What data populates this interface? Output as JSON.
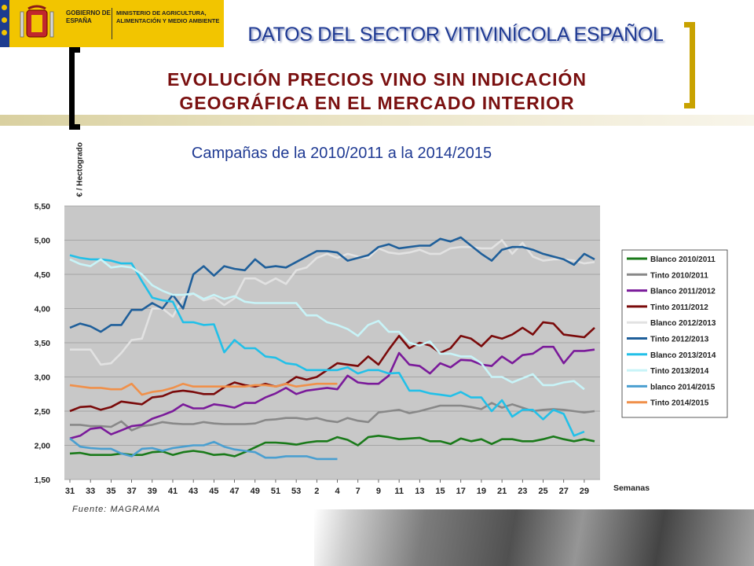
{
  "header": {
    "government": "GOBIERNO DE ESPAÑA",
    "ministry": "MINISTERIO DE AGRICULTURA, ALIMENTACIÓN Y MEDIO AMBIENTE",
    "sector_title": "DATOS DEL SECTOR VITIVINÍCOLA ESPAÑOL",
    "title_line1": "EVOLUCIÓN PRECIOS VINO SIN INDICACIÓN",
    "title_line2": "GEOGRÁFICA EN EL MERCADO INTERIOR",
    "subtitle": "Campañas de la 2010/2011 a la 2014/2015",
    "brand_color": "#f2c500"
  },
  "footer": {
    "source": "Fuente: MAGRAMA"
  },
  "chart_data": {
    "type": "line",
    "ylabel": "€ / Hectogrado",
    "xlabel": "Semanas",
    "ylim": [
      1.5,
      5.5
    ],
    "y_ticks": [
      "1,50",
      "2,00",
      "2,50",
      "3,00",
      "3,50",
      "4,00",
      "4,50",
      "5,00",
      "5,50"
    ],
    "x_ticks": [
      "31",
      "33",
      "35",
      "37",
      "39",
      "41",
      "43",
      "45",
      "47",
      "49",
      "51",
      "53",
      "2",
      "4",
      "7",
      "9",
      "11",
      "13",
      "15",
      "17",
      "19",
      "21",
      "23",
      "25",
      "27",
      "29"
    ],
    "grid": true,
    "legend_position": "right",
    "series": [
      {
        "name": "Blanco 2010/2011",
        "color": "#1a7a1a",
        "values": [
          1.88,
          1.89,
          1.86,
          1.86,
          1.86,
          1.88,
          1.86,
          1.86,
          1.9,
          1.91,
          1.86,
          1.9,
          1.92,
          1.9,
          1.86,
          1.87,
          1.84,
          1.9,
          1.97,
          2.04,
          2.04,
          2.03,
          2.01,
          2.04,
          2.06,
          2.06,
          2.12,
          2.08,
          2.0,
          2.12,
          2.14,
          2.12,
          2.09,
          2.1,
          2.11,
          2.06,
          2.06,
          2.02,
          2.1,
          2.06,
          2.09,
          2.02,
          2.09,
          2.09,
          2.06,
          2.06,
          2.09,
          2.13,
          2.09,
          2.06,
          2.09,
          2.06
        ]
      },
      {
        "name": "Tinto 2010/2011",
        "color": "#888888",
        "values": [
          2.3,
          2.3,
          2.28,
          2.28,
          2.27,
          2.35,
          2.22,
          2.28,
          2.3,
          2.34,
          2.32,
          2.31,
          2.31,
          2.34,
          2.32,
          2.31,
          2.31,
          2.31,
          2.32,
          2.37,
          2.38,
          2.4,
          2.4,
          2.38,
          2.4,
          2.36,
          2.34,
          2.4,
          2.36,
          2.34,
          2.48,
          2.5,
          2.52,
          2.47,
          2.5,
          2.54,
          2.58,
          2.58,
          2.58,
          2.56,
          2.53,
          2.62,
          2.55,
          2.6,
          2.55,
          2.5,
          2.52,
          2.53,
          2.52,
          2.5,
          2.48,
          2.5
        ]
      },
      {
        "name": "Blanco 2011/2012",
        "color": "#7a1a9a",
        "values": [
          2.1,
          2.14,
          2.24,
          2.26,
          2.16,
          2.22,
          2.28,
          2.3,
          2.39,
          2.44,
          2.5,
          2.6,
          2.54,
          2.54,
          2.6,
          2.58,
          2.55,
          2.62,
          2.62,
          2.7,
          2.76,
          2.84,
          2.75,
          2.8,
          2.82,
          2.84,
          2.82,
          3.02,
          2.92,
          2.9,
          2.9,
          3.02,
          3.35,
          3.18,
          3.16,
          3.05,
          3.2,
          3.14,
          3.25,
          3.24,
          3.18,
          3.16,
          3.3,
          3.2,
          3.32,
          3.34,
          3.44,
          3.44,
          3.2,
          3.38,
          3.38,
          3.4
        ]
      },
      {
        "name": "Tinto 2011/2012",
        "color": "#7a0a0a",
        "values": [
          2.5,
          2.56,
          2.57,
          2.52,
          2.56,
          2.64,
          2.62,
          2.6,
          2.7,
          2.72,
          2.78,
          2.8,
          2.78,
          2.75,
          2.75,
          2.85,
          2.92,
          2.88,
          2.86,
          2.9,
          2.86,
          2.9,
          3.0,
          2.96,
          3.0,
          3.1,
          3.2,
          3.18,
          3.16,
          3.3,
          3.18,
          3.4,
          3.6,
          3.42,
          3.5,
          3.46,
          3.35,
          3.42,
          3.6,
          3.56,
          3.45,
          3.6,
          3.56,
          3.62,
          3.72,
          3.62,
          3.8,
          3.78,
          3.62,
          3.6,
          3.58,
          3.72
        ]
      },
      {
        "name": "Blanco 2012/2013",
        "color": "#e2e2e2",
        "values": [
          3.4,
          3.4,
          3.4,
          3.18,
          3.2,
          3.35,
          3.54,
          3.56,
          4.0,
          4.0,
          3.88,
          4.16,
          4.22,
          4.12,
          4.16,
          4.05,
          4.15,
          4.44,
          4.44,
          4.36,
          4.44,
          4.36,
          4.56,
          4.6,
          4.74,
          4.8,
          4.74,
          4.8,
          4.76,
          4.74,
          4.88,
          4.82,
          4.8,
          4.82,
          4.86,
          4.8,
          4.8,
          4.88,
          4.9,
          4.9,
          4.88,
          4.88,
          5.0,
          4.8,
          4.96,
          4.76,
          4.7,
          4.72,
          4.72,
          4.7,
          4.66,
          4.68
        ]
      },
      {
        "name": "Tinto 2012/2013",
        "color": "#1f5f9a",
        "values": [
          3.72,
          3.78,
          3.74,
          3.66,
          3.76,
          3.76,
          3.98,
          3.98,
          4.08,
          4.0,
          4.2,
          4.0,
          4.5,
          4.62,
          4.48,
          4.62,
          4.58,
          4.56,
          4.72,
          4.6,
          4.62,
          4.6,
          4.68,
          4.76,
          4.84,
          4.84,
          4.82,
          4.7,
          4.74,
          4.78,
          4.9,
          4.94,
          4.88,
          4.9,
          4.92,
          4.92,
          5.02,
          4.98,
          5.04,
          4.92,
          4.8,
          4.7,
          4.86,
          4.9,
          4.9,
          4.86,
          4.8,
          4.76,
          4.72,
          4.64,
          4.8,
          4.72
        ]
      },
      {
        "name": "Blanco 2013/2014",
        "color": "#22c0e8",
        "values": [
          4.78,
          4.74,
          4.72,
          4.72,
          4.7,
          4.66,
          4.66,
          4.4,
          4.16,
          4.12,
          4.1,
          3.8,
          3.8,
          3.76,
          3.77,
          3.36,
          3.54,
          3.42,
          3.42,
          3.3,
          3.28,
          3.2,
          3.18,
          3.1,
          3.1,
          3.1,
          3.1,
          3.14,
          3.05,
          3.1,
          3.1,
          3.05,
          3.06,
          2.8,
          2.8,
          2.76,
          2.74,
          2.72,
          2.78,
          2.7,
          2.7,
          2.5,
          2.66,
          2.42,
          2.52,
          2.52,
          2.38,
          2.52,
          2.46,
          2.14,
          2.2
        ]
      },
      {
        "name": "Tinto 2013/2014",
        "color": "#c8f4f8",
        "values": [
          4.72,
          4.65,
          4.62,
          4.72,
          4.6,
          4.62,
          4.6,
          4.5,
          4.34,
          4.26,
          4.2,
          4.2,
          4.22,
          4.14,
          4.2,
          4.14,
          4.18,
          4.1,
          4.08,
          4.08,
          4.08,
          4.08,
          4.08,
          3.9,
          3.9,
          3.8,
          3.76,
          3.7,
          3.6,
          3.76,
          3.82,
          3.66,
          3.66,
          3.5,
          3.46,
          3.52,
          3.34,
          3.34,
          3.3,
          3.3,
          3.2,
          3.0,
          3.0,
          2.92,
          2.98,
          3.04,
          2.88,
          2.88,
          2.92,
          2.94,
          2.82
        ]
      },
      {
        "name": "blanco 2014/2015",
        "color": "#4a9fd0",
        "values": [
          2.1,
          1.98,
          1.96,
          1.95,
          1.95,
          1.88,
          1.84,
          1.95,
          1.96,
          1.92,
          1.96,
          1.98,
          2.0,
          2.0,
          2.05,
          1.98,
          1.94,
          1.92,
          1.9,
          1.82,
          1.82,
          1.84,
          1.84,
          1.84,
          1.8,
          1.8,
          1.8
        ]
      },
      {
        "name": "Tinto 2014/2015",
        "color": "#f0904a",
        "values": [
          2.88,
          2.86,
          2.84,
          2.84,
          2.82,
          2.82,
          2.9,
          2.74,
          2.78,
          2.8,
          2.84,
          2.9,
          2.86,
          2.86,
          2.86,
          2.86,
          2.86,
          2.86,
          2.88,
          2.88,
          2.86,
          2.9,
          2.86,
          2.88,
          2.9,
          2.9,
          2.9
        ]
      }
    ]
  }
}
